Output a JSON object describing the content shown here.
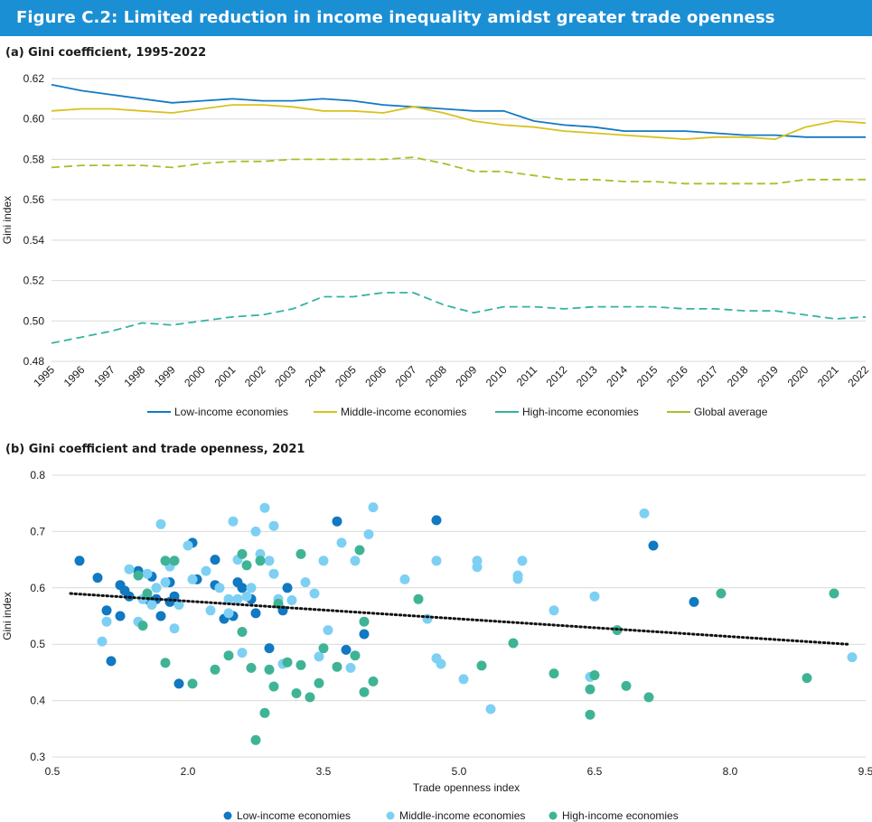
{
  "figure": {
    "title": "Figure C.2: Limited reduction in income inequality amidst greater trade openness",
    "header_color": "#1b8fd4"
  },
  "colors": {
    "low_income": "#1279c4",
    "middle_income_line": "#d8c21e",
    "high_income_line": "#34b3a1",
    "global_average": "#a6c02a",
    "low_income_dot": "#1178c2",
    "middle_income_dot": "#7dd0f3",
    "high_income_dot": "#3fb495",
    "trendline": "#111111",
    "grid": "#d9d9d9"
  },
  "chart_data": [
    {
      "type": "line",
      "title": "(a) Gini coefficient, 1995-2022",
      "ylabel": "Gini index",
      "xlabel": "",
      "ylim": [
        0.48,
        0.62
      ],
      "yticks": [
        "0.48",
        "0.50",
        "0.52",
        "0.54",
        "0.56",
        "0.58",
        "0.60",
        "0.62"
      ],
      "grid": true,
      "legend_placement": "bottom",
      "x": [
        "1995",
        "1996",
        "1997",
        "1998",
        "1999",
        "2000",
        "2001",
        "2002",
        "2003",
        "2004",
        "2005",
        "2006",
        "2007",
        "2008",
        "2009",
        "2010",
        "2011",
        "2012",
        "2013",
        "2014",
        "2015",
        "2016",
        "2017",
        "2018",
        "2019",
        "2020",
        "2021",
        "2022"
      ],
      "series": [
        {
          "name": "Low-income economies",
          "style": "solid",
          "color": "#1279c4",
          "values": [
            0.617,
            0.614,
            0.612,
            0.61,
            0.608,
            0.609,
            0.61,
            0.609,
            0.609,
            0.61,
            0.609,
            0.607,
            0.606,
            0.605,
            0.604,
            0.604,
            0.599,
            0.597,
            0.596,
            0.594,
            0.594,
            0.594,
            0.593,
            0.592,
            0.592,
            0.591,
            0.591,
            0.591
          ]
        },
        {
          "name": "Middle-income economies",
          "style": "solid",
          "color": "#d8c21e",
          "values": [
            0.604,
            0.605,
            0.605,
            0.604,
            0.603,
            0.605,
            0.607,
            0.607,
            0.606,
            0.604,
            0.604,
            0.603,
            0.606,
            0.603,
            0.599,
            0.597,
            0.596,
            0.594,
            0.593,
            0.592,
            0.591,
            0.59,
            0.591,
            0.591,
            0.59,
            0.596,
            0.599,
            0.598
          ]
        },
        {
          "name": "High-income economies",
          "style": "dashed",
          "color": "#34b3a1",
          "values": [
            0.489,
            0.492,
            0.495,
            0.499,
            0.498,
            0.5,
            0.502,
            0.503,
            0.506,
            0.512,
            0.512,
            0.514,
            0.514,
            0.508,
            0.504,
            0.507,
            0.507,
            0.506,
            0.507,
            0.507,
            0.507,
            0.506,
            0.506,
            0.505,
            0.505,
            0.503,
            0.501,
            0.502
          ]
        },
        {
          "name": "Global average",
          "style": "dashed",
          "color": "#a6c02a",
          "values": [
            0.576,
            0.577,
            0.577,
            0.577,
            0.576,
            0.578,
            0.579,
            0.579,
            0.58,
            0.58,
            0.58,
            0.58,
            0.581,
            0.578,
            0.574,
            0.574,
            0.572,
            0.57,
            0.57,
            0.569,
            0.569,
            0.568,
            0.568,
            0.568,
            0.568,
            0.57,
            0.57,
            0.57
          ]
        }
      ]
    },
    {
      "type": "scatter",
      "title": "(b) Gini coefficient and trade openness, 2021",
      "xlabel": "Trade openness index",
      "ylabel": "Gini index",
      "xlim": [
        0.5,
        9.5
      ],
      "ylim": [
        0.3,
        0.8
      ],
      "xticks": [
        "0.5",
        "2.0",
        "3.5",
        "5.0",
        "6.5",
        "8.0",
        "9.5"
      ],
      "yticks": [
        "0.3",
        "0.4",
        "0.5",
        "0.6",
        "0.7",
        "0.8"
      ],
      "grid": true,
      "legend_placement": "bottom",
      "trendline": {
        "x": [
          0.7,
          9.3
        ],
        "y": [
          0.59,
          0.5
        ],
        "style": "dotted"
      },
      "series": [
        {
          "name": "Low-income economies",
          "color": "#1178c2",
          "points": [
            [
              0.8,
              0.648
            ],
            [
              1.0,
              0.618
            ],
            [
              1.1,
              0.56
            ],
            [
              1.15,
              0.47
            ],
            [
              1.25,
              0.605
            ],
            [
              1.25,
              0.55
            ],
            [
              1.3,
              0.595
            ],
            [
              1.35,
              0.585
            ],
            [
              1.45,
              0.63
            ],
            [
              1.55,
              0.58
            ],
            [
              1.6,
              0.62
            ],
            [
              1.65,
              0.58
            ],
            [
              1.7,
              0.55
            ],
            [
              1.8,
              0.575
            ],
            [
              1.8,
              0.61
            ],
            [
              1.85,
              0.585
            ],
            [
              1.9,
              0.43
            ],
            [
              2.05,
              0.68
            ],
            [
              2.1,
              0.615
            ],
            [
              2.3,
              0.65
            ],
            [
              2.3,
              0.605
            ],
            [
              2.4,
              0.545
            ],
            [
              2.5,
              0.55
            ],
            [
              2.55,
              0.61
            ],
            [
              2.6,
              0.6
            ],
            [
              2.7,
              0.58
            ],
            [
              2.75,
              0.555
            ],
            [
              2.9,
              0.493
            ],
            [
              3.05,
              0.56
            ],
            [
              3.1,
              0.6
            ],
            [
              3.65,
              0.718
            ],
            [
              3.75,
              0.49
            ],
            [
              3.95,
              0.518
            ],
            [
              4.75,
              0.72
            ],
            [
              7.15,
              0.675
            ],
            [
              7.6,
              0.575
            ]
          ]
        },
        {
          "name": "Middle-income economies",
          "color": "#7dd0f3",
          "points": [
            [
              1.05,
              0.505
            ],
            [
              1.1,
              0.54
            ],
            [
              1.35,
              0.633
            ],
            [
              1.45,
              0.54
            ],
            [
              1.5,
              0.58
            ],
            [
              1.55,
              0.625
            ],
            [
              1.6,
              0.57
            ],
            [
              1.65,
              0.6
            ],
            [
              1.7,
              0.713
            ],
            [
              1.75,
              0.61
            ],
            [
              1.8,
              0.638
            ],
            [
              1.85,
              0.528
            ],
            [
              1.9,
              0.57
            ],
            [
              2.0,
              0.675
            ],
            [
              2.05,
              0.615
            ],
            [
              2.2,
              0.63
            ],
            [
              2.25,
              0.56
            ],
            [
              2.35,
              0.6
            ],
            [
              2.45,
              0.58
            ],
            [
              2.45,
              0.555
            ],
            [
              2.5,
              0.718
            ],
            [
              2.55,
              0.58
            ],
            [
              2.55,
              0.65
            ],
            [
              2.6,
              0.485
            ],
            [
              2.65,
              0.585
            ],
            [
              2.7,
              0.6
            ],
            [
              2.75,
              0.7
            ],
            [
              2.8,
              0.66
            ],
            [
              2.85,
              0.742
            ],
            [
              2.9,
              0.648
            ],
            [
              2.95,
              0.71
            ],
            [
              2.95,
              0.625
            ],
            [
              3.0,
              0.58
            ],
            [
              3.05,
              0.465
            ],
            [
              3.15,
              0.578
            ],
            [
              3.3,
              0.61
            ],
            [
              3.4,
              0.59
            ],
            [
              3.45,
              0.478
            ],
            [
              3.5,
              0.648
            ],
            [
              3.55,
              0.525
            ],
            [
              3.7,
              0.68
            ],
            [
              3.8,
              0.458
            ],
            [
              3.85,
              0.648
            ],
            [
              4.0,
              0.695
            ],
            [
              4.05,
              0.743
            ],
            [
              4.4,
              0.615
            ],
            [
              4.65,
              0.545
            ],
            [
              4.75,
              0.648
            ],
            [
              4.75,
              0.475
            ],
            [
              4.8,
              0.465
            ],
            [
              5.05,
              0.438
            ],
            [
              5.2,
              0.648
            ],
            [
              5.2,
              0.637
            ],
            [
              5.35,
              0.385
            ],
            [
              5.65,
              0.622
            ],
            [
              5.65,
              0.616
            ],
            [
              5.7,
              0.648
            ],
            [
              6.05,
              0.56
            ],
            [
              6.45,
              0.442
            ],
            [
              6.5,
              0.585
            ],
            [
              7.05,
              0.732
            ],
            [
              9.35,
              0.477
            ]
          ]
        },
        {
          "name": "High-income economies",
          "color": "#3fb495",
          "points": [
            [
              1.45,
              0.622
            ],
            [
              1.5,
              0.533
            ],
            [
              1.55,
              0.59
            ],
            [
              1.75,
              0.648
            ],
            [
              1.75,
              0.467
            ],
            [
              1.85,
              0.648
            ],
            [
              2.05,
              0.43
            ],
            [
              2.3,
              0.455
            ],
            [
              2.45,
              0.48
            ],
            [
              2.6,
              0.66
            ],
            [
              2.6,
              0.522
            ],
            [
              2.65,
              0.64
            ],
            [
              2.7,
              0.458
            ],
            [
              2.75,
              0.33
            ],
            [
              2.8,
              0.648
            ],
            [
              2.85,
              0.378
            ],
            [
              2.9,
              0.455
            ],
            [
              2.95,
              0.425
            ],
            [
              3.0,
              0.572
            ],
            [
              3.1,
              0.468
            ],
            [
              3.2,
              0.413
            ],
            [
              3.25,
              0.66
            ],
            [
              3.25,
              0.463
            ],
            [
              3.35,
              0.406
            ],
            [
              3.45,
              0.431
            ],
            [
              3.5,
              0.493
            ],
            [
              3.65,
              0.46
            ],
            [
              3.85,
              0.48
            ],
            [
              3.9,
              0.667
            ],
            [
              3.95,
              0.54
            ],
            [
              3.95,
              0.415
            ],
            [
              4.05,
              0.434
            ],
            [
              4.55,
              0.58
            ],
            [
              5.25,
              0.462
            ],
            [
              5.6,
              0.502
            ],
            [
              6.05,
              0.448
            ],
            [
              6.45,
              0.375
            ],
            [
              6.45,
              0.42
            ],
            [
              6.5,
              0.445
            ],
            [
              6.75,
              0.525
            ],
            [
              6.85,
              0.426
            ],
            [
              7.1,
              0.406
            ],
            [
              7.9,
              0.59
            ],
            [
              8.85,
              0.44
            ],
            [
              9.15,
              0.59
            ]
          ]
        }
      ]
    }
  ]
}
